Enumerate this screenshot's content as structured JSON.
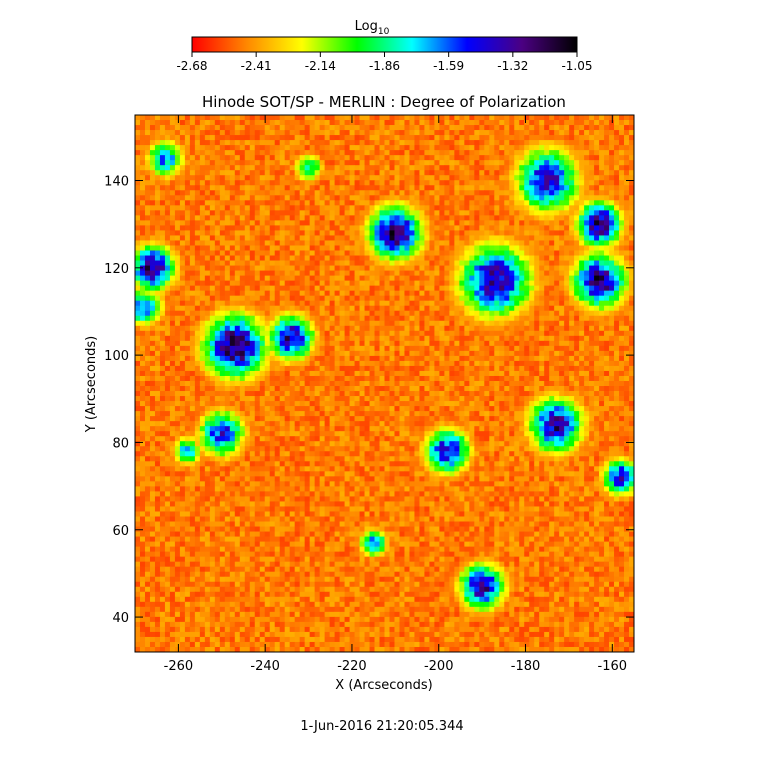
{
  "chart_data": {
    "type": "heatmap",
    "title": "Hinode SOT/SP - MERLIN : Degree of Polarization",
    "xlabel": "X (Arcseconds)",
    "ylabel": "Y (Arcseconds)",
    "footer": "1-Jun-2016 21:20:05.344",
    "xlim": [
      -270,
      -155
    ],
    "ylim": [
      32,
      155
    ],
    "x_ticks": [
      -260,
      -240,
      -220,
      -200,
      -180,
      -160
    ],
    "y_ticks": [
      40,
      60,
      80,
      100,
      120,
      140
    ],
    "colorbar": {
      "title": "Log",
      "title_sub": "10",
      "ticks": [
        "-2.68",
        "-2.41",
        "-2.14",
        "-1.86",
        "-1.59",
        "-1.32",
        "-1.05"
      ],
      "range": [
        -2.68,
        -1.05
      ],
      "colors": [
        "#ff0000",
        "#ff8800",
        "#ffff00",
        "#00ff00",
        "#00ffff",
        "#0000ff",
        "#4b0082",
        "#000000"
      ]
    },
    "grid": false,
    "high_polarization_regions": [
      {
        "x": -247,
        "y": 102,
        "level": 1.0,
        "spread": 7
      },
      {
        "x": -234,
        "y": 104,
        "level": 0.9,
        "spread": 5
      },
      {
        "x": -210,
        "y": 128,
        "level": 0.95,
        "spread": 6
      },
      {
        "x": -175,
        "y": 140,
        "level": 0.85,
        "spread": 7
      },
      {
        "x": -163,
        "y": 130,
        "level": 0.95,
        "spread": 5
      },
      {
        "x": -187,
        "y": 117,
        "level": 0.9,
        "spread": 8
      },
      {
        "x": -163,
        "y": 117,
        "level": 0.95,
        "spread": 6
      },
      {
        "x": -266,
        "y": 120,
        "level": 0.95,
        "spread": 5
      },
      {
        "x": -268,
        "y": 111,
        "level": 0.75,
        "spread": 4
      },
      {
        "x": -173,
        "y": 84,
        "level": 0.9,
        "spread": 6
      },
      {
        "x": -158,
        "y": 72,
        "level": 0.85,
        "spread": 4
      },
      {
        "x": -198,
        "y": 78,
        "level": 0.85,
        "spread": 5
      },
      {
        "x": -190,
        "y": 47,
        "level": 0.9,
        "spread": 5
      },
      {
        "x": -250,
        "y": 82,
        "level": 0.8,
        "spread": 5
      },
      {
        "x": -263,
        "y": 145,
        "level": 0.7,
        "spread": 4
      },
      {
        "x": -215,
        "y": 57,
        "level": 0.7,
        "spread": 3
      },
      {
        "x": -230,
        "y": 143,
        "level": 0.6,
        "spread": 3
      },
      {
        "x": -258,
        "y": 78,
        "level": 0.65,
        "spread": 3
      }
    ]
  }
}
